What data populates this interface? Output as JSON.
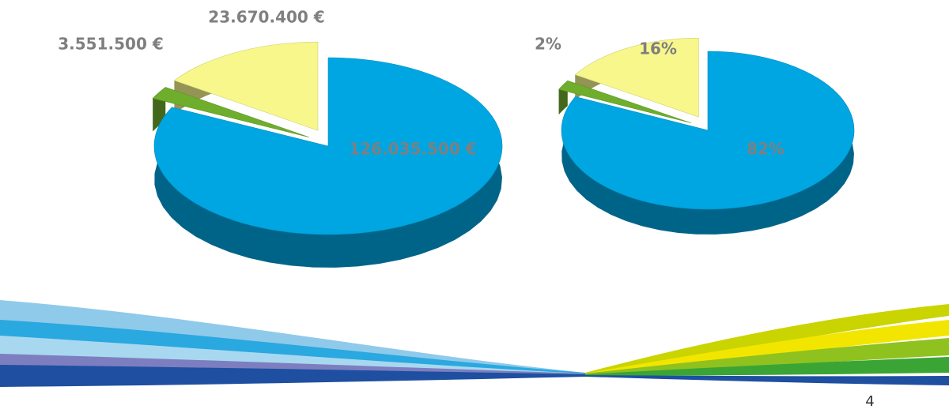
{
  "chart_data": [
    {
      "type": "pie3d",
      "values": [
        126035500,
        3551500,
        23670400
      ],
      "value_labels": [
        "126.035.500 €",
        "3.551.500 €",
        "23.670.400 €"
      ],
      "colors": [
        "#00a6e2",
        "#6fae2d",
        "#f7f78c"
      ],
      "exploded": [
        false,
        true,
        true
      ]
    },
    {
      "type": "pie3d",
      "values": [
        82,
        2,
        16
      ],
      "value_labels": [
        "82%",
        "2%",
        "16%"
      ],
      "colors": [
        "#00a6e2",
        "#6fae2d",
        "#f7f78c"
      ],
      "exploded": [
        false,
        true,
        true
      ]
    }
  ],
  "slide": {
    "page_number": "4"
  }
}
